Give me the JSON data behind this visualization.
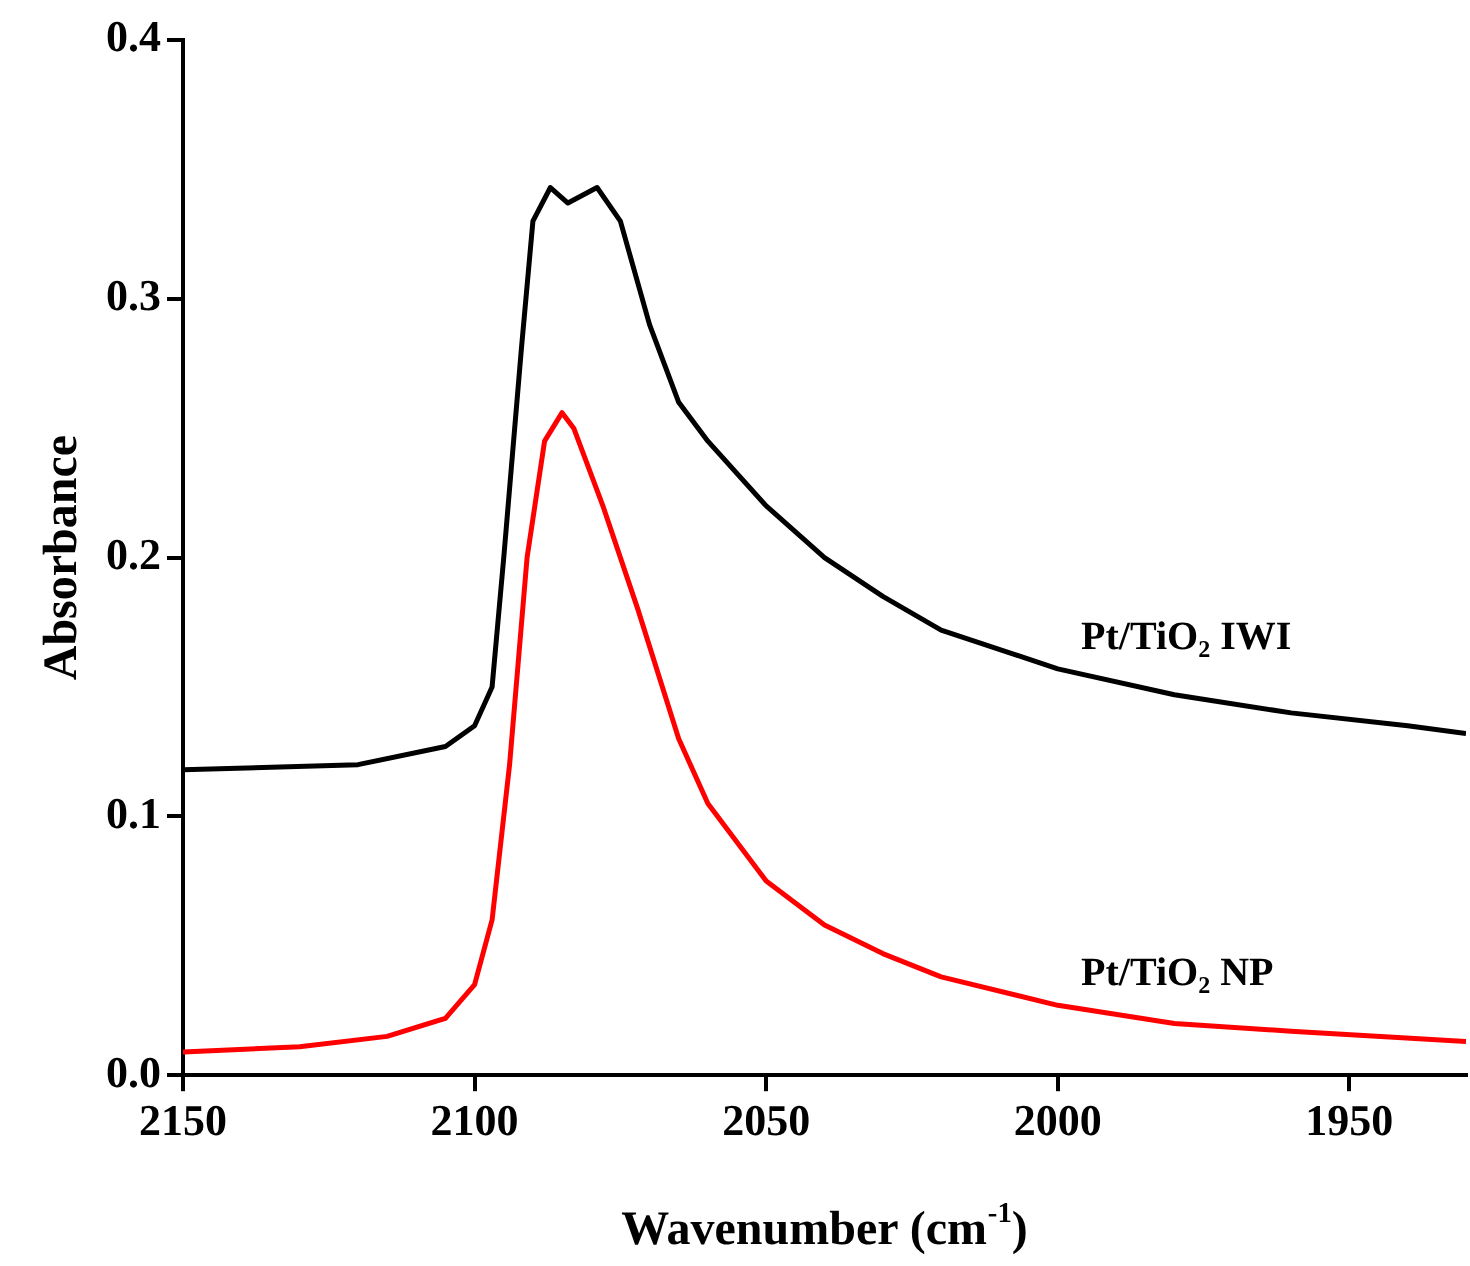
{
  "chart_data": {
    "type": "line",
    "xlabel": "Wavenumber (cm$^{-1}$)",
    "ylabel": "Absorbance",
    "xlim": [
      2150,
      1930
    ],
    "xticks": [
      2150,
      2100,
      2050,
      2000,
      1950
    ],
    "ylim": [
      0,
      0.4
    ],
    "yticks": [
      {
        "value": 0,
        "label": "0.0"
      },
      0.1,
      0.2,
      0.3,
      0.4
    ],
    "grid": false,
    "legend": false,
    "marker": "none",
    "line_style": "solid",
    "series": [
      {
        "name": "Pt/TiO₂ IWI",
        "color": "#000000",
        "x": [
          2150,
          2120,
          2105,
          2100,
          2097,
          2095,
          2092,
          2090,
          2087,
          2084,
          2079,
          2075,
          2070,
          2065,
          2060,
          2050,
          2040,
          2030,
          2020,
          2000,
          1980,
          1960,
          1940,
          1930
        ],
        "values": [
          0.118,
          0.12,
          0.127,
          0.135,
          0.15,
          0.2,
          0.28,
          0.33,
          0.343,
          0.337,
          0.343,
          0.33,
          0.29,
          0.26,
          0.245,
          0.22,
          0.2,
          0.185,
          0.172,
          0.157,
          0.147,
          0.14,
          0.135,
          0.132
        ]
      },
      {
        "name": "Pt/TiO₂ NP",
        "color": "#ff0000",
        "x": [
          2150,
          2130,
          2115,
          2105,
          2100,
          2097,
          2094,
          2091,
          2088,
          2085,
          2083,
          2078,
          2072,
          2065,
          2060,
          2050,
          2040,
          2030,
          2020,
          2000,
          1980,
          1960,
          1930
        ],
        "values": [
          0.009,
          0.011,
          0.015,
          0.022,
          0.035,
          0.06,
          0.12,
          0.2,
          0.245,
          0.256,
          0.25,
          0.22,
          0.18,
          0.13,
          0.105,
          0.075,
          0.058,
          0.047,
          0.038,
          0.027,
          0.02,
          0.017,
          0.013
        ]
      }
    ]
  }
}
